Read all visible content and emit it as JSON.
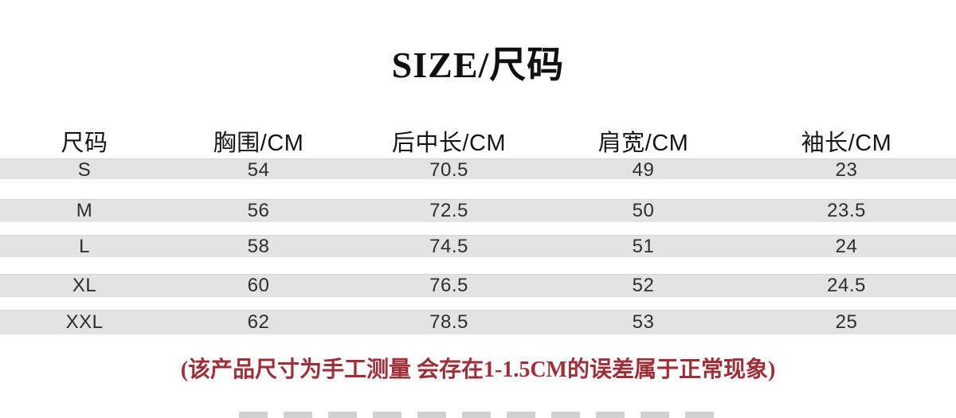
{
  "title": "SIZE/尺码",
  "table": {
    "columns": [
      "尺码",
      "胸围/CM",
      "后中长/CM",
      "肩宽/CM",
      "袖长/CM"
    ],
    "rows": [
      {
        "cells": [
          "S",
          "54",
          "70.5",
          "49",
          "23"
        ]
      },
      {
        "cells": [
          "M",
          "56",
          "72.5",
          "50",
          "23.5"
        ]
      },
      {
        "cells": [
          "L",
          "58",
          "74.5",
          "51",
          "24"
        ]
      },
      {
        "cells": [
          "XL",
          "60",
          "76.5",
          "52",
          "24.5"
        ]
      },
      {
        "cells": [
          "XXL",
          "62",
          "78.5",
          "53",
          "25"
        ]
      }
    ]
  },
  "note": "(该产品尺寸为手工测量 会存在1-1.5CM的误差属于正常现象)",
  "colors": {
    "background": "#fefefe",
    "row_band": "#e3e3e3",
    "text_primary": "#151515",
    "value_text": "#2e2e2e",
    "note_red": "#9e2f38"
  },
  "chart_data": {
    "type": "table",
    "title": "SIZE/尺码",
    "columns": [
      "尺码",
      "胸围/CM",
      "后中长/CM",
      "肩宽/CM",
      "袖长/CM"
    ],
    "rows": [
      [
        "S",
        54,
        70.5,
        49,
        23
      ],
      [
        "M",
        56,
        72.5,
        50,
        23.5
      ],
      [
        "L",
        58,
        74.5,
        51,
        24
      ],
      [
        "XL",
        60,
        76.5,
        52,
        24.5
      ],
      [
        "XXL",
        62,
        78.5,
        53,
        25
      ]
    ],
    "units": "CM",
    "note": "(该产品尺寸为手工测量 会存在1-1.5CM的误差属于正常现象)",
    "layout": {
      "banded_rows": true,
      "band_color": "#e3e3e3",
      "grid": false
    }
  }
}
